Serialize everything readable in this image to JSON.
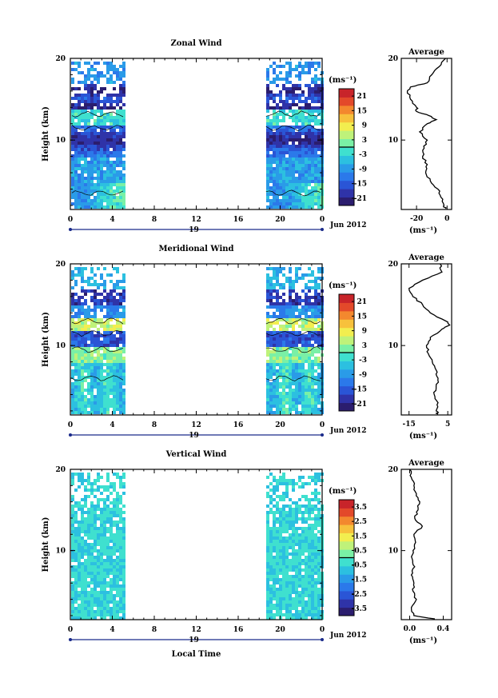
{
  "colors": {
    "colorbar": [
      "#2b1d6e",
      "#2f33a8",
      "#2a55d6",
      "#2b79ea",
      "#2a9be8",
      "#2cc0e0",
      "#3fe0cf",
      "#7af0a6",
      "#bff27a",
      "#f2ee4f",
      "#f7c13c",
      "#f3882e",
      "#e3492a",
      "#c8242a"
    ],
    "contour": "#000000",
    "profile": "#000000"
  },
  "date_label": "Jun 2012",
  "day_label": "19",
  "xlabel_bottom": "Local Time",
  "x_ticks": [
    "0",
    "4",
    "8",
    "12",
    "16",
    "20",
    "0"
  ],
  "chart_data": [
    {
      "type": "heatmap",
      "title": "Zonal Wind",
      "ylabel": "Height (km)",
      "xlabel": "Local Time",
      "x_ticks": [
        "0",
        "4",
        "8",
        "12",
        "16",
        "20",
        "0"
      ],
      "y_ticks": [
        "10",
        "20"
      ],
      "xlim": [
        0,
        24
      ],
      "ylim": [
        1.5,
        20
      ],
      "data_gap_hours": [
        5.3,
        18.5
      ],
      "colorbar": {
        "unit": "(ms⁻¹)",
        "ticks": [
          "21",
          "15",
          "9",
          "3",
          "-3",
          "-9",
          "-15",
          "-21"
        ],
        "range": [
          -24,
          24
        ]
      },
      "average_profile": {
        "title": "Average",
        "xlabel": "(ms⁻¹)",
        "x_ticks": [
          "-20",
          "0"
        ],
        "y_ticks": [
          "10",
          "20"
        ],
        "xlim": [
          -30,
          3
        ],
        "height": [
          1.6,
          2,
          3,
          4,
          5,
          6,
          7,
          8,
          9,
          10,
          11,
          12,
          12.5,
          13,
          13.5,
          14,
          15,
          16,
          16.5,
          17,
          18,
          19,
          20
        ],
        "values": [
          -1,
          -2,
          -4,
          -6,
          -11,
          -14,
          -13,
          -16,
          -15,
          -13,
          -18,
          -13,
          -7,
          -12,
          -20,
          -20,
          -24,
          -26,
          -24,
          -13,
          -10,
          -5,
          -1
        ]
      }
    },
    {
      "type": "heatmap",
      "title": "Meridional Wind",
      "ylabel": "Height (km)",
      "xlabel": "Local Time",
      "x_ticks": [
        "0",
        "4",
        "8",
        "12",
        "16",
        "20",
        "0"
      ],
      "y_ticks": [
        "10",
        "20"
      ],
      "xlim": [
        0,
        24
      ],
      "ylim": [
        1.5,
        20
      ],
      "data_gap_hours": [
        5.3,
        18.5
      ],
      "colorbar": {
        "unit": "(ms⁻¹)",
        "ticks": [
          "21",
          "15",
          "9",
          "3",
          "-3",
          "-9",
          "-15",
          "-21"
        ],
        "range": [
          -24,
          24
        ]
      },
      "average_profile": {
        "title": "Average",
        "xlabel": "(ms⁻¹)",
        "x_ticks": [
          "-15",
          "5"
        ],
        "y_ticks": [
          "10",
          "20"
        ],
        "xlim": [
          -19,
          7
        ],
        "height": [
          1.6,
          2,
          3,
          4,
          5,
          6,
          7,
          8,
          9,
          10,
          11,
          12,
          12.5,
          13,
          14,
          15,
          16,
          17,
          18,
          19,
          20
        ],
        "values": [
          0,
          -1,
          0,
          -2,
          -1,
          0,
          -1,
          -3,
          -5,
          -6,
          -4,
          2,
          6,
          4,
          -4,
          -8,
          -13,
          -15,
          -8,
          2,
          1
        ]
      }
    },
    {
      "type": "heatmap",
      "title": "Vertical Wind",
      "ylabel": "Height (km)",
      "xlabel": "Local Time",
      "x_ticks": [
        "0",
        "4",
        "8",
        "12",
        "16",
        "20",
        "0"
      ],
      "y_ticks": [
        "10",
        "20"
      ],
      "xlim": [
        0,
        24
      ],
      "ylim": [
        1.5,
        20
      ],
      "data_gap_hours": [
        5.3,
        18.5
      ],
      "colorbar": {
        "unit": "(ms⁻¹)",
        "ticks": [
          "3.5",
          "2.5",
          "1.5",
          "0.5",
          "-0.5",
          "-1.5",
          "-2.5",
          "-3.5"
        ],
        "range": [
          -4,
          4
        ]
      },
      "average_profile": {
        "title": "Average",
        "xlabel": "(ms⁻¹)",
        "x_ticks": [
          "0.0",
          "0.4"
        ],
        "y_ticks": [
          "10",
          "20"
        ],
        "xlim": [
          -0.1,
          0.5
        ],
        "height": [
          1.6,
          2,
          3,
          4,
          5,
          6,
          7,
          8,
          9,
          10,
          11,
          12,
          13,
          14,
          15,
          16,
          17,
          18,
          19,
          20
        ],
        "values": [
          0.3,
          0.05,
          0.02,
          0.08,
          0.04,
          0.05,
          0.02,
          0.06,
          0.03,
          0.04,
          0.07,
          0.05,
          0.15,
          0.06,
          0.1,
          0.12,
          0.08,
          0.05,
          0.02,
          0.0
        ]
      }
    }
  ]
}
